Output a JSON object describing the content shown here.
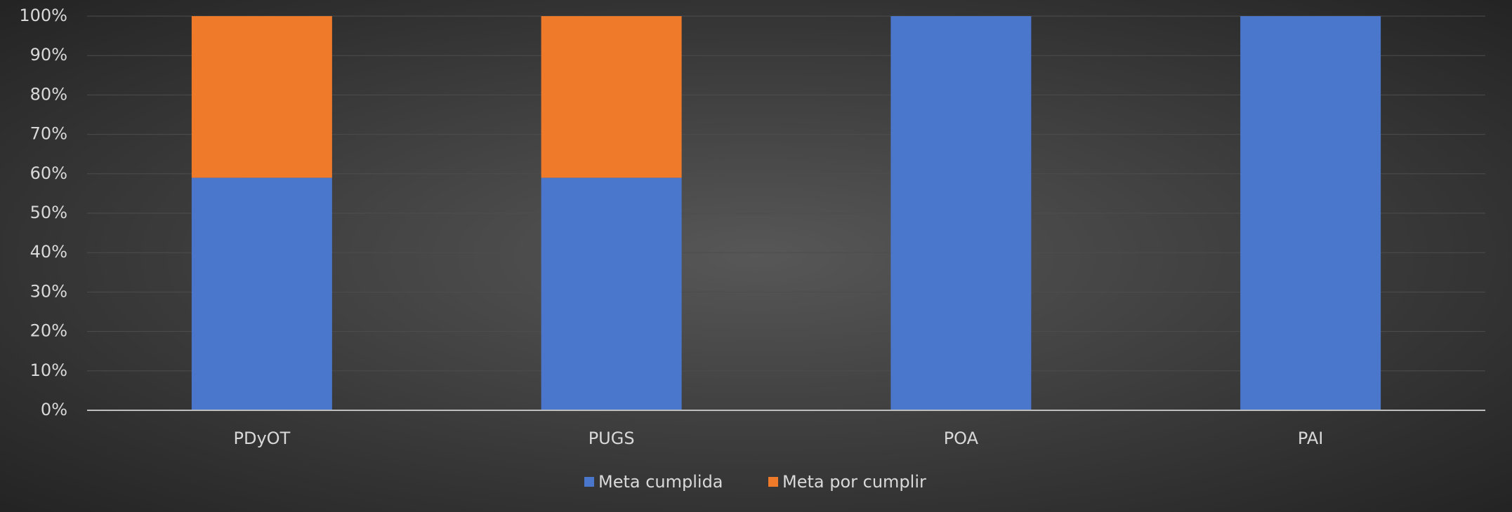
{
  "chart_data": {
    "type": "stacked_bar",
    "categories": [
      "PDyOT",
      "PUGS",
      "POA",
      "PAI"
    ],
    "series": [
      {
        "name": "Meta cumplida",
        "color": "#4a76cc",
        "values": [
          59,
          59,
          100,
          100
        ]
      },
      {
        "name": "Meta por cumplir",
        "color": "#ee7a2a",
        "values": [
          41,
          41,
          0,
          0
        ]
      }
    ],
    "ylim": [
      0,
      100
    ],
    "yticks": [
      {
        "value": 0,
        "label": "0%"
      },
      {
        "value": 10,
        "label": "10%"
      },
      {
        "value": 20,
        "label": "20%"
      },
      {
        "value": 30,
        "label": "30%"
      },
      {
        "value": 40,
        "label": "40%"
      },
      {
        "value": 50,
        "label": "50%"
      },
      {
        "value": 60,
        "label": "60%"
      },
      {
        "value": 70,
        "label": "70%"
      },
      {
        "value": 80,
        "label": "80%"
      },
      {
        "value": 90,
        "label": "90%"
      },
      {
        "value": 100,
        "label": "100%"
      }
    ],
    "grid": true,
    "legend": "bottom"
  }
}
